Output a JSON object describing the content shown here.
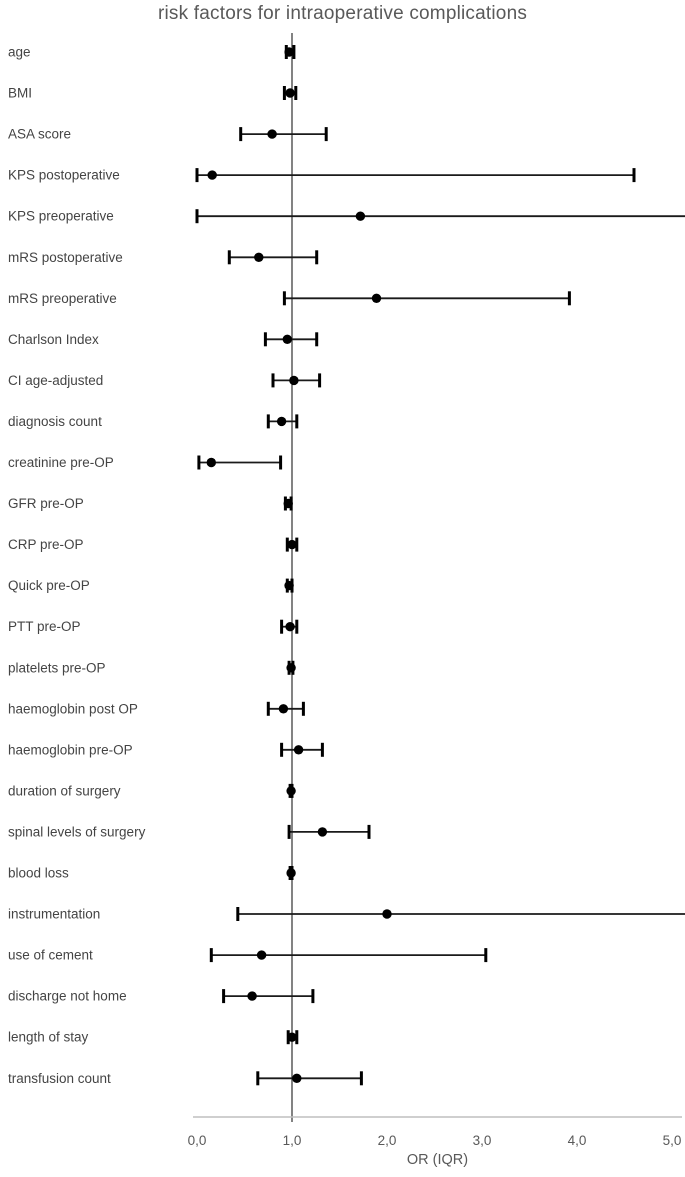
{
  "chart_data": {
    "type": "scatter",
    "subtype": "forest-plot",
    "title": "risk factors for intraoperative complications",
    "xlabel": "OR (IQR)",
    "xlim": [
      0,
      5
    ],
    "x_ticks": [
      0,
      1,
      2,
      3,
      4,
      5
    ],
    "x_tick_labels": [
      "0,0",
      "1,0",
      "2,0",
      "3,0",
      "4,0",
      "5,0"
    ],
    "reference_line_x": 1.0,
    "grid": false,
    "legend": false,
    "categories": [
      "age",
      "BMI",
      "ASA score",
      "KPS postoperative",
      "KPS preoperative",
      "mRS postoperative",
      "mRS preoperative",
      "Charlson Index",
      "CI age-adjusted",
      "diagnosis count",
      "creatinine pre-OP",
      "GFR pre-OP",
      "CRP pre-OP",
      "Quick pre-OP",
      "PTT pre-OP",
      "platelets pre-OP",
      "haemoglobin post OP",
      "haemoglobin pre-OP",
      "duration of surgery",
      "spinal levels of surgery",
      "blood loss",
      "instrumentation",
      "use of cement",
      "discharge not home",
      "length of stay",
      "transfusion count"
    ],
    "rows": [
      {
        "label": "age",
        "or": 0.97,
        "ci_low": 0.94,
        "ci_high": 1.02,
        "ci_high_clipped": false
      },
      {
        "label": "BMI",
        "or": 0.98,
        "ci_low": 0.92,
        "ci_high": 1.04,
        "ci_high_clipped": false
      },
      {
        "label": "ASA score",
        "or": 0.79,
        "ci_low": 0.46,
        "ci_high": 1.36,
        "ci_high_clipped": false
      },
      {
        "label": "KPS postoperative",
        "or": 0.16,
        "ci_low": 0.0,
        "ci_high": 4.6,
        "ci_high_clipped": false
      },
      {
        "label": "KPS preoperative",
        "or": 1.72,
        "ci_low": 0.0,
        "ci_high": 5.1,
        "ci_high_clipped": true
      },
      {
        "label": "mRS postoperative",
        "or": 0.65,
        "ci_low": 0.34,
        "ci_high": 1.26,
        "ci_high_clipped": false
      },
      {
        "label": "mRS preoperative",
        "or": 1.89,
        "ci_low": 0.92,
        "ci_high": 3.92,
        "ci_high_clipped": false
      },
      {
        "label": "Charlson Index",
        "or": 0.95,
        "ci_low": 0.72,
        "ci_high": 1.26,
        "ci_high_clipped": false
      },
      {
        "label": "CI age-adjusted",
        "or": 1.02,
        "ci_low": 0.8,
        "ci_high": 1.29,
        "ci_high_clipped": false
      },
      {
        "label": "diagnosis count",
        "or": 0.89,
        "ci_low": 0.75,
        "ci_high": 1.05,
        "ci_high_clipped": false
      },
      {
        "label": "creatinine pre-OP",
        "or": 0.15,
        "ci_low": 0.02,
        "ci_high": 0.88,
        "ci_high_clipped": false
      },
      {
        "label": "GFR pre-OP",
        "or": 0.96,
        "ci_low": 0.93,
        "ci_high": 0.99,
        "ci_high_clipped": false
      },
      {
        "label": "CRP pre-OP",
        "or": 1.0,
        "ci_low": 0.95,
        "ci_high": 1.05,
        "ci_high_clipped": false
      },
      {
        "label": "Quick pre-OP",
        "or": 0.97,
        "ci_low": 0.95,
        "ci_high": 1.0,
        "ci_high_clipped": false
      },
      {
        "label": "PTT pre-OP",
        "or": 0.98,
        "ci_low": 0.89,
        "ci_high": 1.05,
        "ci_high_clipped": false
      },
      {
        "label": "platelets pre-OP",
        "or": 0.99,
        "ci_low": 0.97,
        "ci_high": 1.01,
        "ci_high_clipped": false
      },
      {
        "label": "haemoglobin post OP",
        "or": 0.91,
        "ci_low": 0.75,
        "ci_high": 1.12,
        "ci_high_clipped": false
      },
      {
        "label": "haemoglobin pre-OP",
        "or": 1.07,
        "ci_low": 0.89,
        "ci_high": 1.32,
        "ci_high_clipped": false
      },
      {
        "label": "duration of surgery",
        "or": 0.99,
        "ci_low": 0.98,
        "ci_high": 1.0,
        "ci_high_clipped": false
      },
      {
        "label": "spinal levels of surgery",
        "or": 1.32,
        "ci_low": 0.97,
        "ci_high": 1.81,
        "ci_high_clipped": false
      },
      {
        "label": "blood loss",
        "or": 0.99,
        "ci_low": 0.98,
        "ci_high": 1.0,
        "ci_high_clipped": false
      },
      {
        "label": "instrumentation",
        "or": 2.0,
        "ci_low": 0.43,
        "ci_high": 5.1,
        "ci_high_clipped": true
      },
      {
        "label": "use of cement",
        "or": 0.68,
        "ci_low": 0.15,
        "ci_high": 3.04,
        "ci_high_clipped": false
      },
      {
        "label": "discharge not home",
        "or": 0.58,
        "ci_low": 0.28,
        "ci_high": 1.22,
        "ci_high_clipped": false
      },
      {
        "label": "length of stay",
        "or": 1.0,
        "ci_low": 0.96,
        "ci_high": 1.05,
        "ci_high_clipped": false
      },
      {
        "label": "transfusion count",
        "or": 1.05,
        "ci_low": 0.64,
        "ci_high": 1.73,
        "ci_high_clipped": false
      }
    ],
    "colors": {
      "marker": "#000000",
      "error_bar": "#1a1a1a",
      "thin_whisker": "#3d3d3d",
      "reference_line": "#404040",
      "axis_line": "#bfbfbf",
      "tick_text": "#595959",
      "title_text": "#595959",
      "label_text": "#444444"
    }
  }
}
